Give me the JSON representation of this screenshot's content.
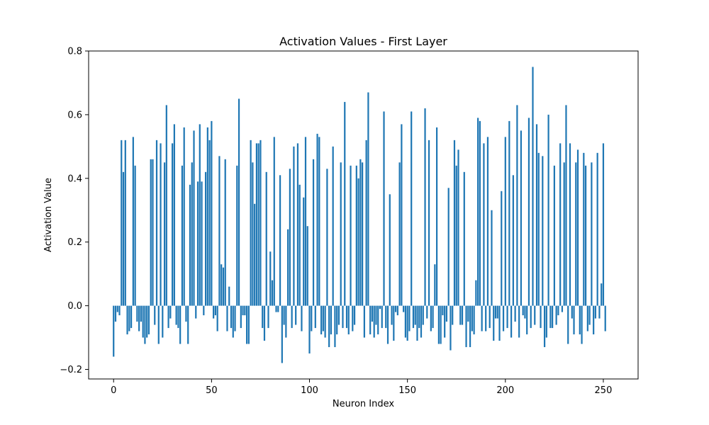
{
  "chart_data": {
    "type": "bar",
    "title": "Activation Values - First Layer",
    "xlabel": "Neuron Index",
    "ylabel": "Activation Value",
    "xlim": [
      -12.75,
      267.75
    ],
    "ylim": [
      -0.23,
      0.8
    ],
    "xticks": [
      0,
      50,
      100,
      150,
      200,
      250
    ],
    "yticks": [
      -0.2,
      0.0,
      0.2,
      0.4,
      0.6,
      0.8
    ],
    "xtick_labels": [
      "0",
      "50",
      "100",
      "150",
      "200",
      "250"
    ],
    "ytick_labels": [
      "−0.2",
      "0.0",
      "0.2",
      "0.4",
      "0.6",
      "0.8"
    ],
    "bar_color": "#1f77b4",
    "grid": false,
    "legend": "none",
    "x_start": 0,
    "values": [
      -0.16,
      -0.05,
      -0.02,
      -0.03,
      0.52,
      0.42,
      0.52,
      -0.09,
      -0.08,
      -0.07,
      0.53,
      0.44,
      -0.05,
      -0.08,
      -0.05,
      -0.1,
      -0.12,
      -0.1,
      -0.09,
      0.46,
      0.46,
      -0.06,
      0.52,
      -0.12,
      0.51,
      -0.1,
      0.45,
      0.63,
      -0.07,
      -0.04,
      0.51,
      0.57,
      -0.06,
      -0.07,
      -0.12,
      0.44,
      0.56,
      -0.05,
      -0.12,
      0.38,
      0.45,
      0.55,
      -0.04,
      0.39,
      0.57,
      0.39,
      -0.03,
      0.42,
      0.56,
      0.52,
      0.58,
      -0.04,
      -0.03,
      -0.08,
      0.47,
      0.13,
      0.12,
      0.46,
      -0.08,
      0.06,
      -0.07,
      -0.1,
      -0.08,
      0.44,
      0.65,
      -0.07,
      -0.03,
      -0.03,
      -0.12,
      -0.12,
      0.52,
      0.45,
      0.32,
      0.51,
      0.51,
      0.52,
      -0.07,
      -0.11,
      0.42,
      -0.07,
      0.17,
      0.08,
      0.53,
      -0.02,
      -0.02,
      0.41,
      -0.18,
      -0.06,
      -0.1,
      0.24,
      0.43,
      -0.07,
      0.5,
      -0.06,
      0.51,
      0.38,
      -0.08,
      0.34,
      0.53,
      0.25,
      -0.15,
      -0.08,
      0.46,
      -0.07,
      0.54,
      0.53,
      -0.09,
      -0.08,
      -0.1,
      0.43,
      -0.13,
      -0.09,
      0.5,
      -0.13,
      -0.09,
      -0.06,
      0.45,
      -0.07,
      0.64,
      -0.07,
      -0.09,
      0.44,
      -0.08,
      -0.06,
      0.44,
      0.4,
      0.46,
      0.45,
      -0.1,
      0.52,
      0.67,
      -0.09,
      -0.05,
      -0.1,
      -0.06,
      -0.09,
      -0.01,
      -0.07,
      0.61,
      -0.07,
      -0.12,
      0.35,
      -0.06,
      -0.11,
      -0.02,
      -0.03,
      0.45,
      0.57,
      -0.02,
      -0.1,
      -0.11,
      -0.08,
      0.61,
      -0.07,
      -0.06,
      -0.11,
      -0.07,
      -0.1,
      -0.06,
      0.62,
      -0.04,
      0.52,
      -0.08,
      -0.07,
      0.13,
      0.56,
      -0.12,
      -0.12,
      -0.03,
      -0.1,
      -0.05,
      0.37,
      -0.14,
      -0.06,
      0.52,
      0.44,
      0.49,
      -0.06,
      -0.06,
      0.42,
      -0.13,
      -0.05,
      -0.13,
      -0.08,
      -0.09,
      0.08,
      0.59,
      0.58,
      -0.08,
      0.51,
      -0.08,
      0.53,
      -0.07,
      0.3,
      -0.11,
      -0.04,
      -0.04,
      -0.11,
      0.36,
      -0.08,
      0.53,
      -0.07,
      0.58,
      -0.1,
      0.41,
      -0.05,
      0.63,
      -0.1,
      0.55,
      -0.03,
      -0.04,
      -0.09,
      0.59,
      -0.07,
      0.75,
      -0.06,
      0.57,
      0.48,
      -0.07,
      0.47,
      -0.13,
      -0.1,
      0.6,
      -0.07,
      -0.07,
      0.44,
      -0.06,
      -0.03,
      0.51,
      -0.02,
      0.45,
      0.63,
      -0.12,
      0.51,
      -0.04,
      -0.09,
      0.45,
      0.49,
      -0.09,
      -0.12,
      0.48,
      0.44,
      -0.08,
      -0.06,
      0.45,
      -0.09,
      -0.04,
      0.48,
      -0.04,
      0.07,
      0.51,
      -0.08
    ]
  }
}
